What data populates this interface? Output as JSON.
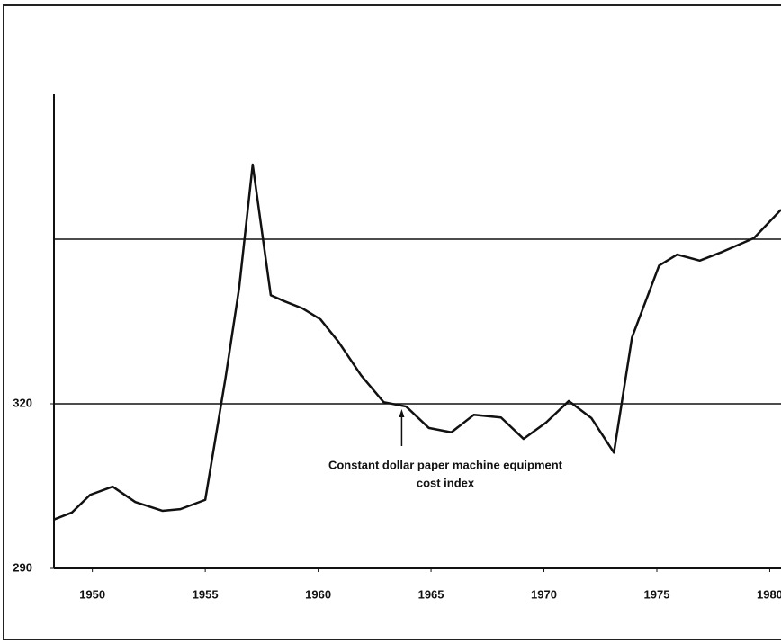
{
  "chart_data": {
    "type": "line",
    "annotation": [
      "Constant dollar paper machine equipment",
      "cost index"
    ],
    "annotation_x": 1963.7,
    "x": [
      1948.3,
      1949.1,
      1949.9,
      1950.9,
      1951.9,
      1953.1,
      1953.9,
      1955.0,
      1955.9,
      1956.5,
      1957.1,
      1957.9,
      1958.5,
      1959.3,
      1960.1,
      1960.9,
      1961.9,
      1962.9,
      1963.9,
      1964.9,
      1965.9,
      1966.9,
      1968.1,
      1969.1,
      1970.1,
      1971.1,
      1972.1,
      1973.1,
      1973.9,
      1975.1,
      1975.9,
      1976.9,
      1977.9,
      1979.3,
      1980.5
    ],
    "series": [
      {
        "color": "#111111",
        "values": [
          298.9,
          300.2,
          303.4,
          304.9,
          302.1,
          300.5,
          300.8,
          302.5,
          324.8,
          341.1,
          363.6,
          339.8,
          338.7,
          337.4,
          335.4,
          331.3,
          325.2,
          320.3,
          319.5,
          315.6,
          314.8,
          318.0,
          317.5,
          313.6,
          316.6,
          320.5,
          317.4,
          311.1,
          332.1,
          345.2,
          347.2,
          346.1,
          347.7,
          350.2,
          355.4
        ]
      }
    ],
    "xlim": [
      1948.3,
      1980.5
    ],
    "xticks": [
      1950,
      1955,
      1960,
      1965,
      1970,
      1975,
      1980
    ],
    "ylim": [
      290,
      376
    ],
    "yticks": [
      290,
      320
    ],
    "grid_lines": [
      320,
      350
    ]
  }
}
